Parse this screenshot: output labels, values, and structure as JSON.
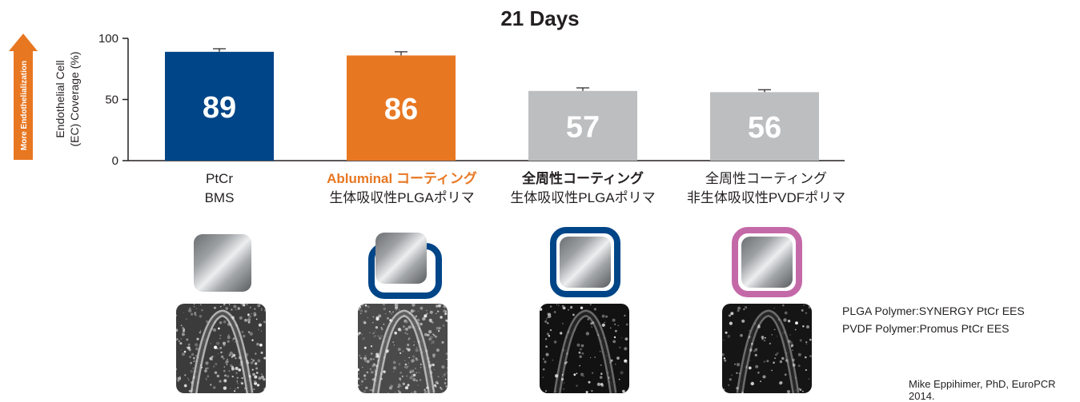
{
  "title": "21 Days",
  "side_arrow": {
    "label": "More Endothelialization",
    "color": "#e87722"
  },
  "chart_data": {
    "type": "bar",
    "title": "21 Days",
    "ylabel_lines": [
      "Endothelial Cell",
      "(EC) Coverage (%)"
    ],
    "ylim": [
      0,
      100
    ],
    "yticks": [
      0,
      50,
      100
    ],
    "categories": [
      {
        "lines": [
          "PtCr",
          "BMS"
        ]
      },
      {
        "lines": [
          "Abluminal コーティング",
          "生体吸収性PLGAポリマ"
        ]
      },
      {
        "lines": [
          "全周性コーティング",
          "生体吸収性PLGAポリマ"
        ]
      },
      {
        "lines": [
          "全周性コーティング",
          "非生体吸収性PVDFポリマ"
        ]
      }
    ],
    "values": [
      89,
      86,
      57,
      56
    ],
    "data_labels": [
      "89",
      "86",
      "57",
      "56"
    ],
    "error_upper": [
      91.5,
      89,
      59.5,
      58
    ],
    "bar_colors": [
      "#004587",
      "#e87722",
      "#bcbec0",
      "#bcbec0"
    ],
    "grid": false,
    "legend": "none"
  },
  "coating_icons": [
    {
      "type": "bare"
    },
    {
      "type": "abluminal",
      "ring_color": "#004587"
    },
    {
      "type": "conformal",
      "ring_color": "#004587"
    },
    {
      "type": "conformal",
      "ring_color": "#c469a8"
    }
  ],
  "notes": [
    {
      "name": "PLGA Polymer",
      "value": "SYNERGY PtCr EES"
    },
    {
      "name": "PVDF Polymer",
      "value": "Promus PtCr EES"
    }
  ],
  "credit": "Mike Eppihimer, PhD, EuroPCR 2014."
}
